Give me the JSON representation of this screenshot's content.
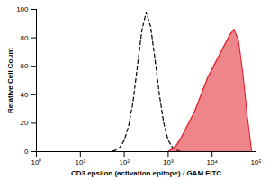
{
  "chart_data": {
    "type": "line",
    "x_label": "CD3 epsilon (activation epitope) / GAM FITC",
    "y_label": "Relative Cell Count",
    "log": "x",
    "xlim": [
      1,
      100000
    ],
    "xticks": [
      {
        "value": 1,
        "label": "10⁰"
      },
      {
        "value": 10,
        "label": "10¹"
      },
      {
        "value": 100,
        "label": "10²"
      },
      {
        "value": 1000,
        "label": "10³"
      },
      {
        "value": 10000,
        "label": "10⁴"
      },
      {
        "value": 100000,
        "label": "10⁵"
      }
    ],
    "ylim": [
      0,
      100
    ],
    "yticks": [
      0,
      20,
      40,
      60,
      80,
      100
    ],
    "x": [
      39.8,
      50.1,
      63.1,
      79.4,
      100,
      125.9,
      158.5,
      199.5,
      251.2,
      316.2,
      398.1,
      501.2,
      631,
      794.3,
      1000,
      1258.9,
      1584.9,
      1995.3,
      2511.9,
      3162.3,
      3981.1,
      5011.9,
      6309.6,
      7943.3,
      10000,
      12589,
      15849,
      19953,
      25119,
      31623,
      39811,
      50119,
      63096,
      79433
    ],
    "series": [
      {
        "color": "#000000",
        "line_style": "dashed",
        "values": [
          0,
          0,
          1,
          3,
          8,
          18,
          35,
          60,
          85,
          98,
          88,
          65,
          40,
          20,
          8,
          3,
          1,
          0,
          null,
          null,
          null,
          null,
          null,
          null,
          null,
          null,
          null,
          null,
          null,
          null,
          null,
          null,
          null,
          null
        ]
      },
      {
        "color": "#e0202a",
        "type": "area",
        "values": [
          null,
          null,
          null,
          null,
          null,
          null,
          null,
          null,
          null,
          null,
          null,
          null,
          null,
          null,
          0,
          2,
          5,
          10,
          16,
          22,
          28,
          36,
          44,
          52,
          58,
          64,
          70,
          76,
          82,
          86,
          78,
          55,
          25,
          0
        ]
      }
    ]
  }
}
